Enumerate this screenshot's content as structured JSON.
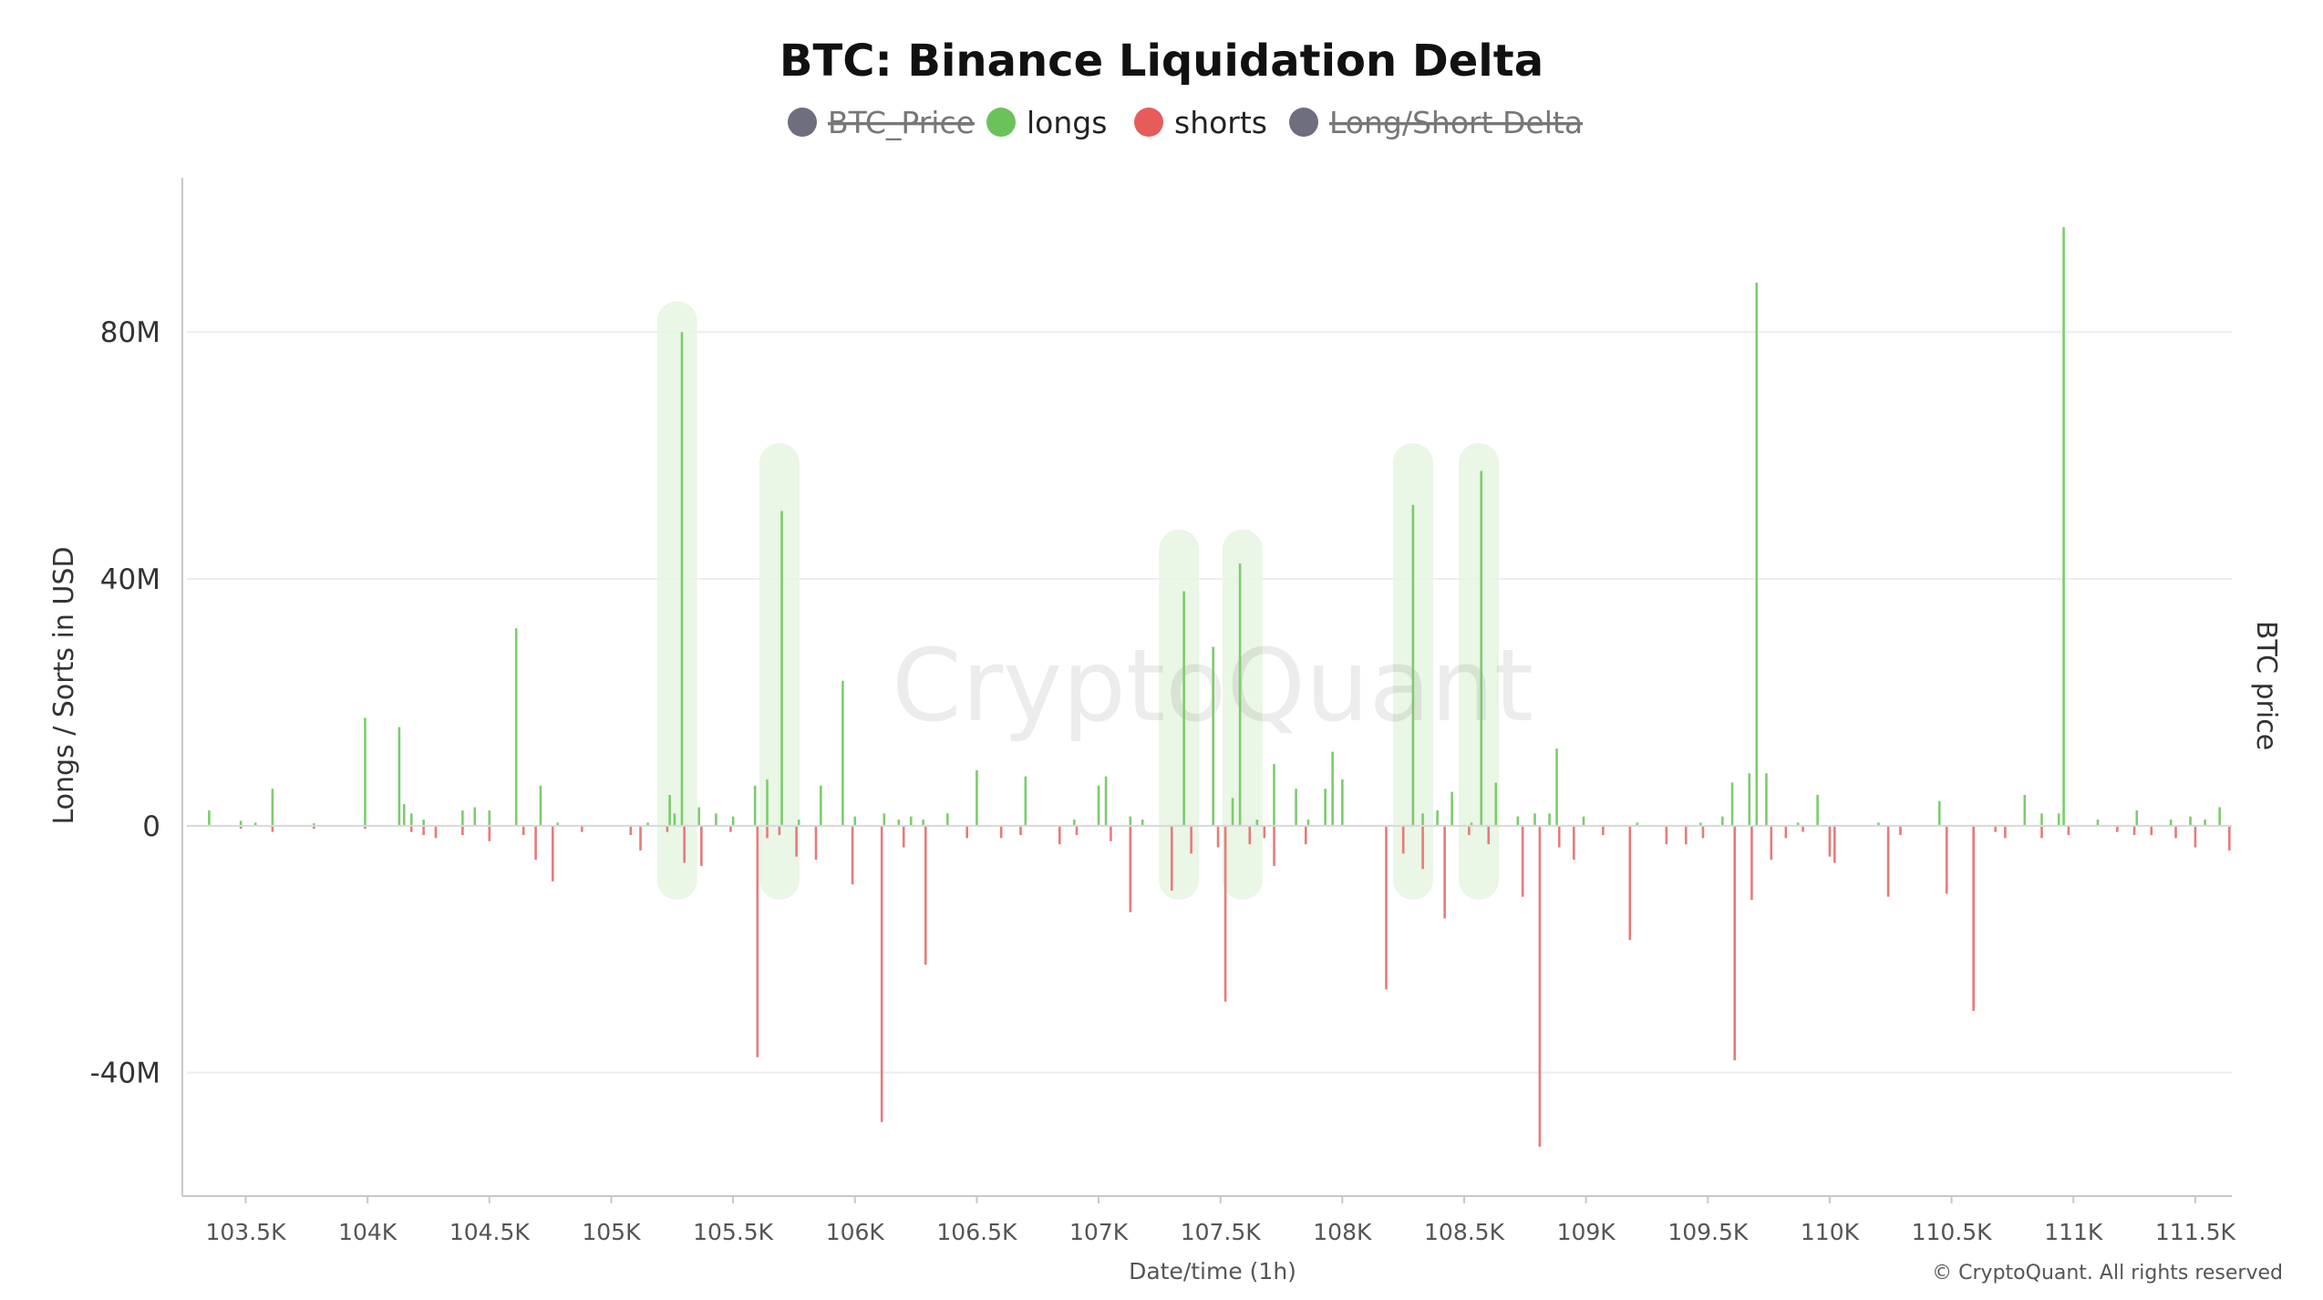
{
  "chart_data": {
    "type": "bar",
    "title": "BTC: Binance Liquidation Delta",
    "xlabel": "Date/time (1h)",
    "ylabel": "Longs / Sorts in USD",
    "y2label": "BTC price",
    "x_axis_kind": "BTC price (USD)",
    "xlim": [
      103240,
      111650
    ],
    "ylim": [
      -60,
      105
    ],
    "y_unit": "M USD",
    "y_ticks": [
      {
        "value": 80,
        "label": "80M"
      },
      {
        "value": 40,
        "label": "40M"
      },
      {
        "value": 0,
        "label": "0"
      },
      {
        "value": -40,
        "label": "-40M"
      }
    ],
    "x_ticks": [
      {
        "value": 103500,
        "label": "103.5K"
      },
      {
        "value": 104000,
        "label": "104K"
      },
      {
        "value": 104500,
        "label": "104.5K"
      },
      {
        "value": 105000,
        "label": "105K"
      },
      {
        "value": 105500,
        "label": "105.5K"
      },
      {
        "value": 106000,
        "label": "106K"
      },
      {
        "value": 106500,
        "label": "106.5K"
      },
      {
        "value": 107000,
        "label": "107K"
      },
      {
        "value": 107500,
        "label": "107.5K"
      },
      {
        "value": 108000,
        "label": "108K"
      },
      {
        "value": 108500,
        "label": "108.5K"
      },
      {
        "value": 109000,
        "label": "109K"
      },
      {
        "value": 109500,
        "label": "109.5K"
      },
      {
        "value": 110000,
        "label": "110K"
      },
      {
        "value": 110500,
        "label": "110.5K"
      },
      {
        "value": 111000,
        "label": "111K"
      },
      {
        "value": 111500,
        "label": "111.5K"
      }
    ],
    "grid": true,
    "legend_position": "top-center",
    "legend": [
      {
        "name": "BTC_Price",
        "color": "#6e6e7e",
        "active": false
      },
      {
        "name": "longs",
        "color": "#6cc25a",
        "active": true
      },
      {
        "name": "shorts",
        "color": "#e85b5b",
        "active": true
      },
      {
        "name": "Long/Short Delta",
        "color": "#6e6e7e",
        "active": false
      }
    ],
    "colors": {
      "longs": "#7ccc6c",
      "shorts": "#e87a7a",
      "highlight": "#e6f4e2"
    },
    "series": [
      {
        "name": "longs",
        "points": [
          [
            103350,
            2.5
          ],
          [
            103480,
            0.8
          ],
          [
            103540,
            0.5
          ],
          [
            103610,
            6.0
          ],
          [
            103780,
            0.4
          ],
          [
            103990,
            17.5
          ],
          [
            104130,
            16.0
          ],
          [
            104150,
            3.5
          ],
          [
            104180,
            2.0
          ],
          [
            104230,
            1.0
          ],
          [
            104390,
            2.5
          ],
          [
            104440,
            3.0
          ],
          [
            104500,
            2.5
          ],
          [
            104610,
            32.0
          ],
          [
            104710,
            6.5
          ],
          [
            104780,
            0.5
          ],
          [
            105150,
            0.5
          ],
          [
            105240,
            5.0
          ],
          [
            105260,
            2.0
          ],
          [
            105290,
            80.0
          ],
          [
            105360,
            3.0
          ],
          [
            105430,
            2.0
          ],
          [
            105500,
            1.5
          ],
          [
            105590,
            6.5
          ],
          [
            105640,
            7.5
          ],
          [
            105700,
            51.0
          ],
          [
            105770,
            1.0
          ],
          [
            105860,
            6.5
          ],
          [
            105950,
            23.5
          ],
          [
            106000,
            1.5
          ],
          [
            106120,
            2.0
          ],
          [
            106180,
            1.0
          ],
          [
            106230,
            1.5
          ],
          [
            106280,
            1.0
          ],
          [
            106380,
            2.0
          ],
          [
            106500,
            9.0
          ],
          [
            106700,
            8.0
          ],
          [
            106900,
            1.0
          ],
          [
            107000,
            6.5
          ],
          [
            107030,
            8.0
          ],
          [
            107130,
            1.5
          ],
          [
            107180,
            1.0
          ],
          [
            107350,
            38.0
          ],
          [
            107470,
            29.0
          ],
          [
            107550,
            4.5
          ],
          [
            107580,
            42.5
          ],
          [
            107650,
            1.0
          ],
          [
            107720,
            10.0
          ],
          [
            107810,
            6.0
          ],
          [
            107860,
            1.0
          ],
          [
            107930,
            6.0
          ],
          [
            107960,
            12.0
          ],
          [
            108000,
            7.5
          ],
          [
            108290,
            52.0
          ],
          [
            108330,
            2.0
          ],
          [
            108390,
            2.5
          ],
          [
            108450,
            5.5
          ],
          [
            108530,
            0.5
          ],
          [
            108570,
            57.5
          ],
          [
            108630,
            7.0
          ],
          [
            108720,
            1.5
          ],
          [
            108790,
            2.0
          ],
          [
            108850,
            2.0
          ],
          [
            108880,
            12.5
          ],
          [
            108990,
            1.5
          ],
          [
            109210,
            0.5
          ],
          [
            109470,
            0.5
          ],
          [
            109560,
            1.5
          ],
          [
            109600,
            7.0
          ],
          [
            109670,
            8.5
          ],
          [
            109700,
            88.0
          ],
          [
            109740,
            8.5
          ],
          [
            109870,
            0.5
          ],
          [
            109950,
            5.0
          ],
          [
            110200,
            0.5
          ],
          [
            110450,
            4.0
          ],
          [
            110800,
            5.0
          ],
          [
            110870,
            2.0
          ],
          [
            110940,
            2.0
          ],
          [
            110960,
            97.0
          ],
          [
            111100,
            1.0
          ],
          [
            111260,
            2.5
          ],
          [
            111400,
            1.0
          ],
          [
            111480,
            1.5
          ],
          [
            111540,
            1.0
          ],
          [
            111600,
            3.0
          ]
        ]
      },
      {
        "name": "shorts",
        "points": [
          [
            103480,
            -0.5
          ],
          [
            103610,
            -1.0
          ],
          [
            103780,
            -0.5
          ],
          [
            103990,
            -0.5
          ],
          [
            104180,
            -1.0
          ],
          [
            104230,
            -1.5
          ],
          [
            104280,
            -2.0
          ],
          [
            104390,
            -1.5
          ],
          [
            104500,
            -2.5
          ],
          [
            104640,
            -1.5
          ],
          [
            104690,
            -5.5
          ],
          [
            104760,
            -9.0
          ],
          [
            104880,
            -1.0
          ],
          [
            105080,
            -1.5
          ],
          [
            105120,
            -4.0
          ],
          [
            105230,
            -1.0
          ],
          [
            105300,
            -6.0
          ],
          [
            105370,
            -6.5
          ],
          [
            105490,
            -1.0
          ],
          [
            105600,
            -37.5
          ],
          [
            105640,
            -2.0
          ],
          [
            105690,
            -1.5
          ],
          [
            105760,
            -5.0
          ],
          [
            105840,
            -5.5
          ],
          [
            105990,
            -9.5
          ],
          [
            106110,
            -48.0
          ],
          [
            106200,
            -3.5
          ],
          [
            106290,
            -22.5
          ],
          [
            106460,
            -2.0
          ],
          [
            106600,
            -2.0
          ],
          [
            106680,
            -1.5
          ],
          [
            106840,
            -3.0
          ],
          [
            106910,
            -1.5
          ],
          [
            107050,
            -2.5
          ],
          [
            107130,
            -14.0
          ],
          [
            107300,
            -10.5
          ],
          [
            107380,
            -4.5
          ],
          [
            107490,
            -3.5
          ],
          [
            107520,
            -28.5
          ],
          [
            107620,
            -3.0
          ],
          [
            107680,
            -2.0
          ],
          [
            107720,
            -6.5
          ],
          [
            107850,
            -3.0
          ],
          [
            108180,
            -26.5
          ],
          [
            108250,
            -4.5
          ],
          [
            108330,
            -7.0
          ],
          [
            108420,
            -15.0
          ],
          [
            108520,
            -1.5
          ],
          [
            108600,
            -3.0
          ],
          [
            108740,
            -11.5
          ],
          [
            108810,
            -52.0
          ],
          [
            108890,
            -3.5
          ],
          [
            108950,
            -5.5
          ],
          [
            109070,
            -1.5
          ],
          [
            109180,
            -18.5
          ],
          [
            109330,
            -3.0
          ],
          [
            109410,
            -3.0
          ],
          [
            109480,
            -2.0
          ],
          [
            109610,
            -38.0
          ],
          [
            109680,
            -12.0
          ],
          [
            109760,
            -5.5
          ],
          [
            109820,
            -2.0
          ],
          [
            109890,
            -1.0
          ],
          [
            110000,
            -5.0
          ],
          [
            110020,
            -6.0
          ],
          [
            110240,
            -11.5
          ],
          [
            110290,
            -1.5
          ],
          [
            110480,
            -11.0
          ],
          [
            110590,
            -30.0
          ],
          [
            110680,
            -1.0
          ],
          [
            110720,
            -2.0
          ],
          [
            110870,
            -2.0
          ],
          [
            110980,
            -1.5
          ],
          [
            111180,
            -1.0
          ],
          [
            111250,
            -1.5
          ],
          [
            111320,
            -1.5
          ],
          [
            111420,
            -2.0
          ],
          [
            111500,
            -3.5
          ],
          [
            111640,
            -4.0
          ]
        ]
      }
    ],
    "highlights": [
      {
        "x": 105270,
        "y_top": 85,
        "y_bottom": -12
      },
      {
        "x": 105690,
        "y_top": 62,
        "y_bottom": -12
      },
      {
        "x": 107330,
        "y_top": 48,
        "y_bottom": -12
      },
      {
        "x": 107590,
        "y_top": 48,
        "y_bottom": -12
      },
      {
        "x": 108290,
        "y_top": 62,
        "y_bottom": -12
      },
      {
        "x": 108560,
        "y_top": 62,
        "y_bottom": -12
      }
    ]
  },
  "watermark": "CryptoQuant",
  "copyright": "© CryptoQuant. All rights reserved"
}
